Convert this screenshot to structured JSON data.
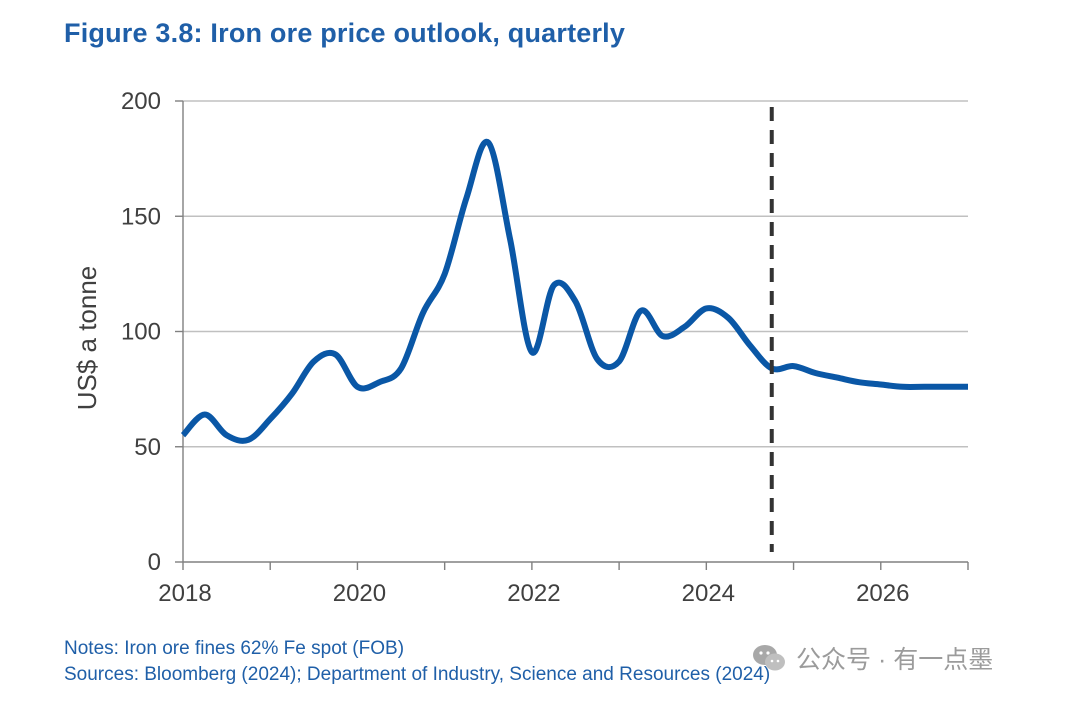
{
  "title": "Figure 3.8: Iron ore price outlook, quarterly",
  "notes": "Notes: Iron ore fines 62% Fe spot (FOB)",
  "sources": "Sources: Bloomberg (2024); Department of Industry, Science and Resources (2024)",
  "watermark": "公众号 · 有一点墨",
  "colors": {
    "title": "#1f5fa8",
    "series": "#0a57a6",
    "grid": "#c0c0c0",
    "axis_text": "#404040",
    "forecast_line": "#333333"
  },
  "chart_data": {
    "type": "line",
    "title": "Figure 3.8: Iron ore price outlook, quarterly",
    "xlabel": "",
    "ylabel": "US$ a tonne",
    "xlim": [
      2018,
      2027
    ],
    "ylim": [
      0,
      200
    ],
    "yticks": [
      0,
      50,
      100,
      150,
      200
    ],
    "xticks": [
      2018,
      2020,
      2022,
      2024,
      2026
    ],
    "xtick_labels": [
      "2018",
      "2020",
      "2022",
      "2024",
      "2026"
    ],
    "ytick_labels": [
      "0",
      "50",
      "100",
      "150",
      "200"
    ],
    "grid": true,
    "forecast_start": 2024.75,
    "series": [
      {
        "name": "Iron ore fines 62% Fe spot (FOB)",
        "x": [
          2018.0,
          2018.25,
          2018.5,
          2018.75,
          2019.0,
          2019.25,
          2019.5,
          2019.75,
          2020.0,
          2020.25,
          2020.5,
          2020.75,
          2021.0,
          2021.25,
          2021.5,
          2021.75,
          2022.0,
          2022.25,
          2022.5,
          2022.75,
          2023.0,
          2023.25,
          2023.5,
          2023.75,
          2024.0,
          2024.25,
          2024.5,
          2024.75,
          2025.0,
          2025.25,
          2025.5,
          2025.75,
          2026.0,
          2026.25,
          2026.5,
          2026.75,
          2027.0
        ],
        "values": [
          55,
          64,
          55,
          53,
          62,
          73,
          87,
          90,
          76,
          78,
          84,
          108,
          125,
          158,
          182,
          140,
          91,
          120,
          113,
          88,
          87,
          109,
          98,
          102,
          110,
          106,
          94,
          84,
          85,
          82,
          80,
          78,
          77,
          76,
          76,
          76,
          76
        ]
      }
    ]
  }
}
